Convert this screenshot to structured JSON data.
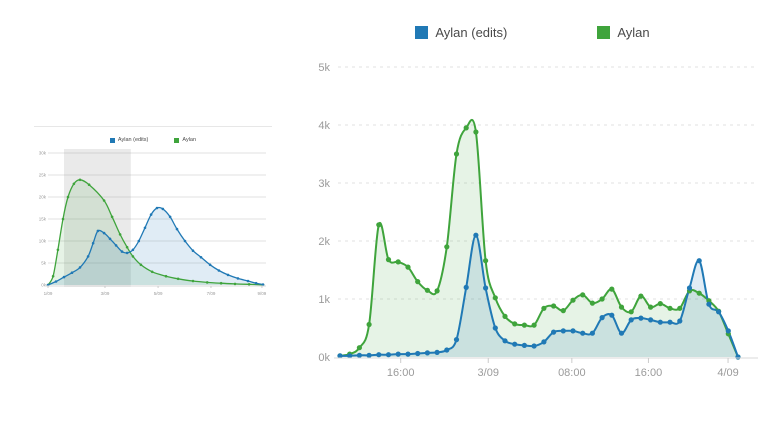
{
  "colors": {
    "edits_blue": "#2079b5",
    "views_green": "#3fa43c",
    "edits_fill": "rgba(32,121,181,0.14)",
    "views_fill": "rgba(63,164,60,0.13)",
    "gridline": "#e2e2e2",
    "axis": "#d9d9d9",
    "tick_text": "#9b9b9b",
    "legend_text": "#4a4a4a",
    "brush": "rgba(125,125,125,0.16)"
  },
  "chart_data": [
    {
      "id": "overview",
      "type": "area",
      "title": "",
      "legend": [
        {
          "label": "Aylan (edits)",
          "color": "#2079b5"
        },
        {
          "label": "Aylan",
          "color": "#3fa43c"
        }
      ],
      "ylim": [
        0,
        30
      ],
      "yticks": [
        {
          "value": 0,
          "label": "0k"
        },
        {
          "value": 5,
          "label": "5k"
        },
        {
          "value": 10,
          "label": "10k"
        },
        {
          "value": 15,
          "label": "15k"
        },
        {
          "value": 20,
          "label": "20k"
        },
        {
          "value": 25,
          "label": "25k"
        },
        {
          "value": 30,
          "label": "30k"
        }
      ],
      "xlim_days": [
        0,
        8.05
      ],
      "xticks": [
        {
          "pos": 0.0,
          "label": "1/09"
        },
        {
          "pos": 0.265,
          "label": "3/09"
        },
        {
          "pos": 0.512,
          "label": "5/09"
        },
        {
          "pos": 0.758,
          "label": "7/09"
        },
        {
          "pos": 0.995,
          "label": "9/09"
        }
      ],
      "brush_days": [
        0.6,
        3.1
      ],
      "series": [
        {
          "name": "Aylan",
          "color": "#3fa43c",
          "fill": "rgba(63,164,60,0.13)",
          "x_days": [
            0,
            0.19,
            0.37,
            0.56,
            0.75,
            0.97,
            1.2,
            1.54,
            2.1,
            2.4,
            2.7,
            2.96,
            3.18,
            3.48,
            3.9,
            4.42,
            4.87,
            5.43,
            5.96,
            6.48,
            7.0,
            7.53,
            8.05
          ],
          "values_k": [
            0,
            2,
            8,
            15,
            20,
            23,
            23.9,
            22.8,
            19.2,
            15.5,
            11.5,
            8.6,
            6.5,
            4.6,
            3.0,
            2.0,
            1.4,
            0.9,
            0.6,
            0.4,
            0.25,
            0.15,
            0.05
          ]
        },
        {
          "name": "Aylan (edits)",
          "color": "#2079b5",
          "fill": "rgba(32,121,181,0.14)",
          "x_days": [
            0,
            0.3,
            0.6,
            0.9,
            1.2,
            1.5,
            1.69,
            1.87,
            2.1,
            2.32,
            2.55,
            2.77,
            2.96,
            3.18,
            3.4,
            3.63,
            3.86,
            4.08,
            4.3,
            4.57,
            4.83,
            5.13,
            5.43,
            5.73,
            6.07,
            6.4,
            6.74,
            7.11,
            7.49,
            7.79,
            8.05
          ],
          "values_k": [
            0,
            0.8,
            1.8,
            2.8,
            4.0,
            6.5,
            9.5,
            12.3,
            11.8,
            10.5,
            9.0,
            7.6,
            7.3,
            8.0,
            10.0,
            13.0,
            16.0,
            17.5,
            17.3,
            15.5,
            12.7,
            10.0,
            7.8,
            6.3,
            4.6,
            3.3,
            2.3,
            1.5,
            0.9,
            0.4,
            0.1
          ]
        }
      ]
    },
    {
      "id": "detail",
      "type": "area",
      "title": "",
      "legend": [
        {
          "label": "Aylan (edits)",
          "color": "#2079b5"
        },
        {
          "label": "Aylan",
          "color": "#3fa43c"
        }
      ],
      "ylim": [
        0,
        5
      ],
      "yticks": [
        {
          "value": 0,
          "label": "0k"
        },
        {
          "value": 1,
          "label": "1k"
        },
        {
          "value": 2,
          "label": "2k"
        },
        {
          "value": 3,
          "label": "3k"
        },
        {
          "value": 4,
          "label": "4k"
        },
        {
          "value": 5,
          "label": "5k"
        }
      ],
      "xticks": [
        {
          "pos": 0.1525,
          "label": "16:00"
        },
        {
          "pos": 0.3725,
          "label": "3/09"
        },
        {
          "pos": 0.5825,
          "label": "08:00"
        },
        {
          "pos": 0.775,
          "label": "16:00"
        },
        {
          "pos": 0.975,
          "label": "4/09"
        }
      ],
      "series": [
        {
          "name": "Aylan",
          "color": "#3fa43c",
          "fill": "rgba(63,164,60,0.13)",
          "values_k": [
            0.02,
            0.05,
            0.16,
            0.56,
            2.28,
            1.68,
            1.64,
            1.55,
            1.3,
            1.15,
            1.14,
            1.9,
            3.5,
            3.95,
            3.88,
            1.66,
            1.02,
            0.7,
            0.57,
            0.55,
            0.55,
            0.84,
            0.88,
            0.8,
            0.98,
            1.07,
            0.93,
            1.0,
            1.17,
            0.86,
            0.78,
            1.05,
            0.86,
            0.92,
            0.84,
            0.84,
            1.14,
            1.1,
            0.97,
            0.79,
            0.4,
            0.0
          ]
        },
        {
          "name": "Aylan (edits)",
          "color": "#2079b5",
          "fill": "rgba(32,121,181,0.14)",
          "values_k": [
            0.02,
            0.02,
            0.03,
            0.03,
            0.04,
            0.04,
            0.05,
            0.05,
            0.06,
            0.07,
            0.08,
            0.12,
            0.3,
            1.2,
            2.1,
            1.19,
            0.5,
            0.28,
            0.22,
            0.2,
            0.19,
            0.26,
            0.43,
            0.45,
            0.45,
            0.41,
            0.41,
            0.68,
            0.72,
            0.41,
            0.64,
            0.67,
            0.64,
            0.6,
            0.6,
            0.62,
            1.19,
            1.66,
            0.91,
            0.78,
            0.45,
            0.0
          ]
        }
      ]
    }
  ]
}
